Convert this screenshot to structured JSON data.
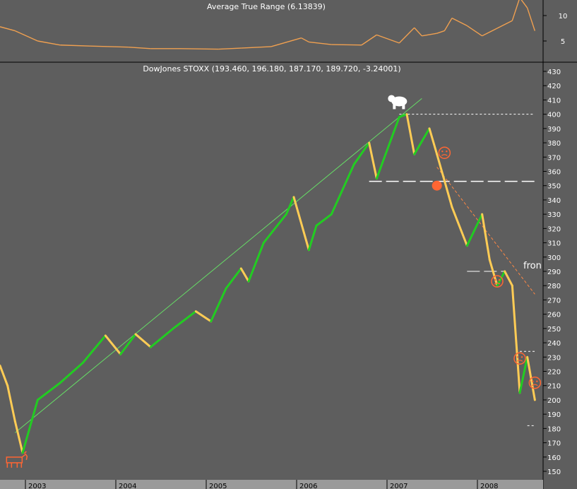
{
  "chart_data": [
    {
      "type": "line",
      "title": "Average True Range (6.13839)",
      "y_ticks": [
        5,
        10
      ],
      "ylim": [
        2,
        14
      ],
      "line_color": "#f0a050",
      "x": [
        "2003-01",
        "2003-03",
        "2003-06",
        "2003-09",
        "2004-01",
        "2004-06",
        "2004-09",
        "2005-01",
        "2005-06",
        "2005-09",
        "2006-01",
        "2006-05",
        "2006-06",
        "2006-09",
        "2007-01",
        "2007-03",
        "2007-06",
        "2007-08",
        "2007-09",
        "2007-11",
        "2007-12",
        "2008-01",
        "2008-03",
        "2008-05",
        "2008-07",
        "2008-09",
        "2008-10",
        "2008-11",
        "2008-12"
      ],
      "values": [
        7.8,
        7.0,
        5.0,
        4.2,
        4.0,
        3.8,
        3.5,
        3.5,
        3.4,
        3.6,
        3.9,
        5.6,
        4.8,
        4.3,
        4.2,
        6.2,
        4.6,
        7.6,
        6.0,
        6.5,
        7.0,
        9.5,
        8.0,
        6.0,
        7.5,
        9.0,
        13.5,
        11.5,
        7.0
      ]
    },
    {
      "type": "line",
      "title": "DowJones STOXX (193.460, 196.180, 187.170, 189.720, -3.24001)",
      "y_ticks": [
        150,
        160,
        170,
        180,
        190,
        200,
        210,
        220,
        230,
        240,
        250,
        260,
        270,
        280,
        290,
        300,
        310,
        320,
        330,
        340,
        350,
        360,
        370,
        380,
        390,
        400,
        410,
        420,
        430
      ],
      "ylim": [
        148,
        432
      ],
      "x_ticks": [
        "2003",
        "2004",
        "2005",
        "2006",
        "2007",
        "2008"
      ],
      "colors": {
        "up": "#22cc22",
        "down": "#ffcc55",
        "trend": "#66dd66",
        "level": "#ffffff",
        "resistance": "#ff8844",
        "marker": "#ff6633"
      },
      "x": [
        "2003-01",
        "2003-02",
        "2003-03",
        "2003-04",
        "2003-06",
        "2003-09",
        "2003-12",
        "2004-03",
        "2004-05",
        "2004-07",
        "2004-09",
        "2004-12",
        "2005-03",
        "2005-05",
        "2005-07",
        "2005-09",
        "2005-10",
        "2005-12",
        "2006-03",
        "2006-04",
        "2006-06",
        "2006-07",
        "2006-09",
        "2006-12",
        "2007-02",
        "2007-03",
        "2007-06",
        "2007-07",
        "2007-08",
        "2007-10",
        "2007-11",
        "2008-01",
        "2008-03",
        "2008-05",
        "2008-06",
        "2008-07",
        "2008-08",
        "2008-09",
        "2008-10",
        "2008-11",
        "2008-12"
      ],
      "values": [
        224,
        210,
        185,
        163,
        200,
        212,
        226,
        245,
        232,
        246,
        237,
        250,
        262,
        255,
        278,
        292,
        283,
        310,
        330,
        342,
        305,
        322,
        330,
        365,
        380,
        355,
        398,
        400,
        372,
        390,
        372,
        335,
        308,
        330,
        298,
        280,
        290,
        280,
        205,
        230,
        200
      ],
      "trendline": {
        "from": [
          "2003-03",
          177
        ],
        "to": [
          "2007-09",
          411
        ]
      },
      "levels": [
        {
          "value": 400,
          "from": "2007-06",
          "to": "2008-12"
        },
        {
          "value": 353,
          "from": "2007-02",
          "to": "2008-12"
        },
        {
          "value": 290,
          "from": "2008-03",
          "to": "2008-08"
        },
        {
          "value": 234,
          "from": "2008-10",
          "to": "2008-12"
        },
        {
          "value": 182,
          "from": "2008-11",
          "to": "2008-12"
        }
      ],
      "resistance": {
        "from": [
          "2007-11",
          363
        ],
        "to": [
          "2008-12",
          274
        ]
      },
      "annotations": {
        "partial_label": "fron"
      },
      "markers": [
        {
          "kind": "bull-icon",
          "x": "2003-03",
          "y": 158
        },
        {
          "kind": "bear-icon",
          "x": "2007-06",
          "y": 409
        },
        {
          "kind": "frown-icon",
          "x": "2007-12",
          "y": 373
        },
        {
          "kind": "frown-icon",
          "x": "2008-07",
          "y": 283
        },
        {
          "kind": "frown-icon",
          "x": "2008-10",
          "y": 229
        },
        {
          "kind": "frown-icon",
          "x": "2008-12",
          "y": 212
        },
        {
          "kind": "dot",
          "x": "2007-11",
          "y": 350
        }
      ]
    }
  ]
}
